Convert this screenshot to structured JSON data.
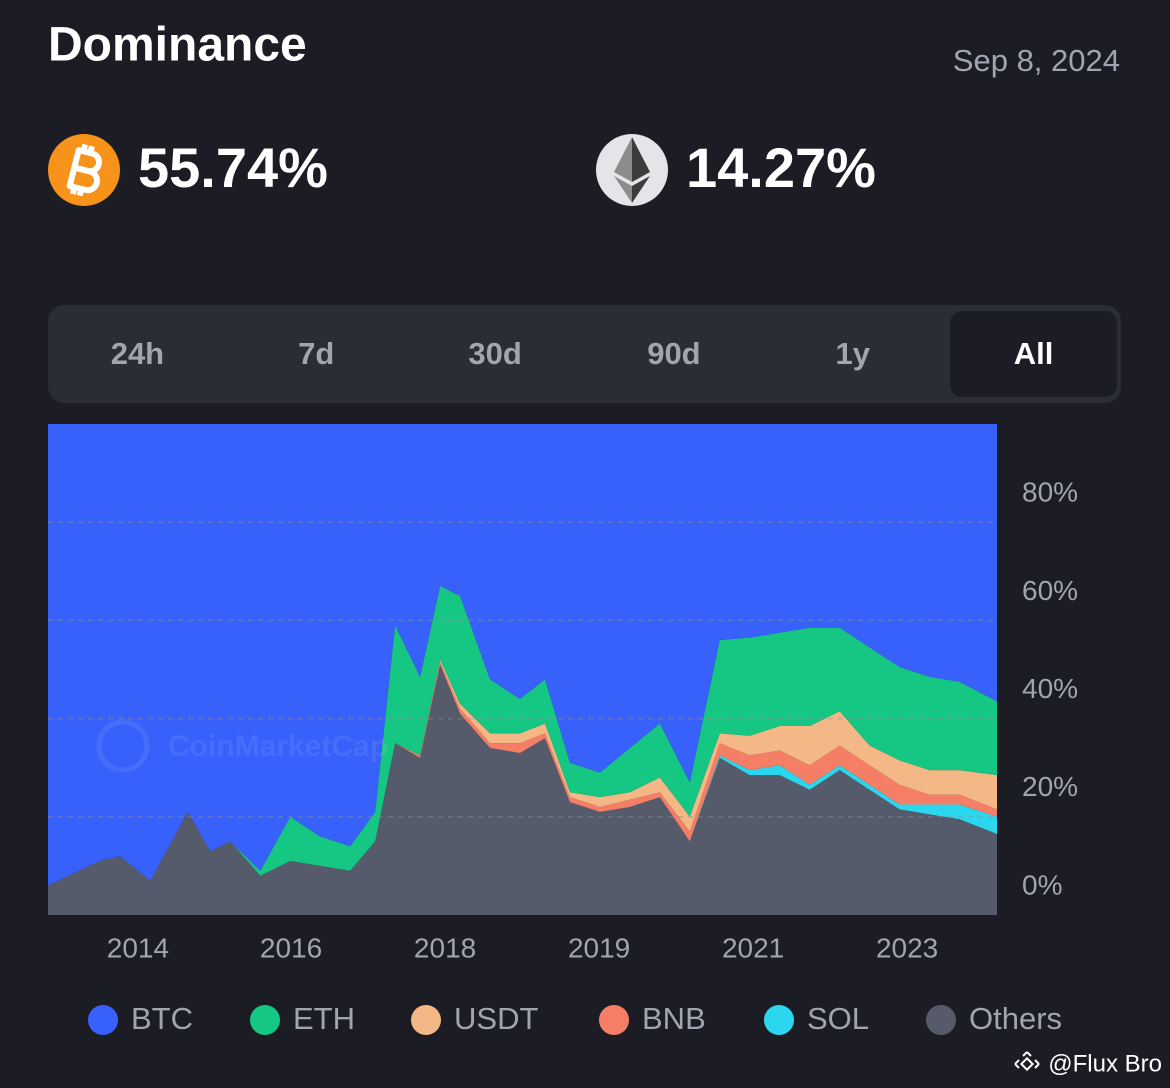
{
  "header": {
    "title": "Dominance",
    "date": "Sep 8, 2024"
  },
  "stats": {
    "btc": "55.74%",
    "eth": "14.27%"
  },
  "tabs": [
    "24h",
    "7d",
    "30d",
    "90d",
    "1y",
    "All"
  ],
  "selected_tab": 5,
  "watermark": "CoinMarketCap",
  "credit": "@Flux Bro",
  "chart_data": {
    "type": "stacked_area",
    "x": [
      2013.3,
      2013.92,
      2014.16,
      2014.53,
      2014.98,
      2015.25,
      2015.49,
      2015.85,
      2016.21,
      2016.57,
      2016.93,
      2017.23,
      2017.47,
      2017.77,
      2018.01,
      2018.25,
      2018.61,
      2018.97,
      2019.27,
      2019.57,
      2019.93,
      2020.29,
      2020.65,
      2021.01,
      2021.37,
      2021.73,
      2022.09,
      2022.45,
      2022.81,
      2023.17,
      2023.53,
      2023.89,
      2024.25,
      2024.7
    ],
    "xlim": [
      2013.3,
      2024.7
    ],
    "xticks": [
      {
        "value": 2014.38,
        "label": "2014"
      },
      {
        "value": 2016.22,
        "label": "2016"
      },
      {
        "value": 2018.07,
        "label": "2018"
      },
      {
        "value": 2019.92,
        "label": "2019"
      },
      {
        "value": 2021.77,
        "label": "2021"
      },
      {
        "value": 2023.62,
        "label": "2023"
      }
    ],
    "ylim": [
      0,
      100
    ],
    "yticks": [
      {
        "value": 0,
        "label": "0%"
      },
      {
        "value": 20,
        "label": "20%"
      },
      {
        "value": 40,
        "label": "40%"
      },
      {
        "value": 60,
        "label": "60%"
      },
      {
        "value": 80,
        "label": "80%"
      }
    ],
    "grid": true,
    "series": [
      {
        "name": "BTC",
        "color": "#3861fb",
        "values": [
          94,
          89,
          88,
          93,
          79,
          87,
          85,
          91,
          80,
          84,
          86,
          79,
          41,
          51.5,
          33,
          35,
          52,
          56,
          52,
          69,
          71,
          66,
          61,
          73,
          44,
          43.5,
          42.5,
          41.5,
          41.5,
          45.5,
          49.5,
          51.5,
          52.5,
          56.5
        ]
      },
      {
        "name": "ETH",
        "color": "#16c784",
        "values": [
          0,
          0,
          0,
          0,
          0,
          0,
          0,
          1,
          9,
          6,
          5,
          6,
          24,
          16,
          15,
          22,
          11,
          7,
          9,
          6,
          5,
          9,
          11,
          7,
          19,
          20,
          19,
          20,
          17,
          20,
          19,
          19,
          18,
          15
        ]
      },
      {
        "name": "USDT",
        "color": "#f3b886",
        "values": [
          0,
          0,
          0,
          0,
          0,
          0,
          0,
          0,
          0,
          0,
          0,
          0,
          0,
          0,
          0.5,
          1,
          2,
          2,
          2,
          1,
          2,
          1.5,
          3,
          3,
          2,
          4,
          5,
          8,
          7,
          4,
          5,
          5,
          5,
          7
        ]
      },
      {
        "name": "BNB",
        "color": "#f57f66",
        "values": [
          0,
          0,
          0,
          0,
          0,
          0,
          0,
          0,
          0,
          0,
          0,
          0,
          0,
          0.5,
          0.5,
          1,
          1,
          2,
          1,
          1,
          1,
          1.5,
          1,
          2,
          2.5,
          3,
          3,
          4,
          4,
          4,
          4,
          2,
          2,
          1.5
        ]
      },
      {
        "name": "SOL",
        "color": "#2bd7ee",
        "values": [
          0,
          0,
          0,
          0,
          0,
          0,
          0,
          0,
          0,
          0,
          0,
          0,
          0,
          0,
          0,
          0,
          0,
          0,
          0,
          0,
          0,
          0,
          0,
          0,
          0.5,
          1,
          2,
          1,
          1,
          1,
          1,
          2,
          3,
          3.5
        ]
      },
      {
        "name": "Others",
        "color": "#565b6c",
        "values": [
          6,
          11,
          12,
          7,
          21,
          13,
          15,
          8,
          11,
          10,
          9,
          15,
          35,
          32,
          51,
          41,
          34,
          33,
          36,
          23,
          21,
          22,
          24,
          15,
          32,
          28.5,
          28.5,
          25.5,
          29.5,
          25.5,
          21.5,
          20.5,
          19.5,
          16.5
        ]
      }
    ]
  }
}
